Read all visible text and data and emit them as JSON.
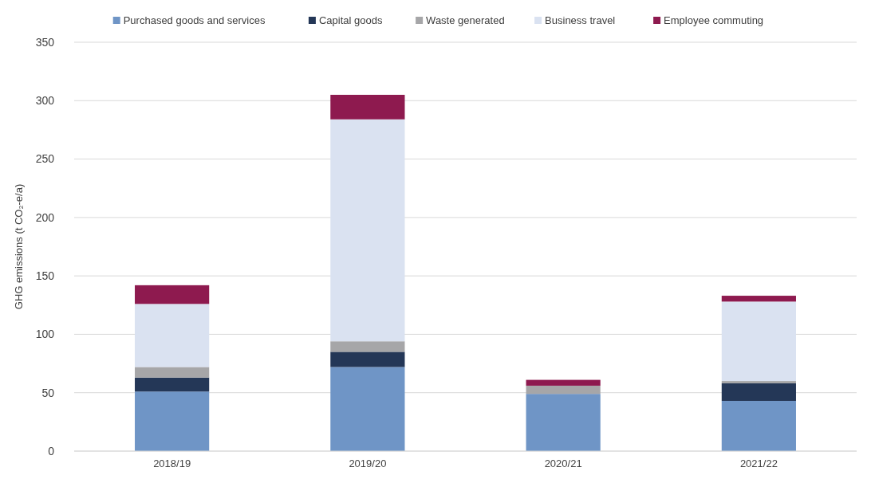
{
  "chart_data": {
    "type": "bar",
    "stacked": true,
    "ylabel": "GHG emissions (t CO₂-e/a)",
    "categories": [
      "2018/19",
      "2019/20",
      "2020/21",
      "2021/22"
    ],
    "series": [
      {
        "name": "Purchased goods and services",
        "color": "#6f95c6",
        "values": [
          51,
          72,
          49,
          43
        ]
      },
      {
        "name": "Capital goods",
        "color": "#243757",
        "values": [
          12,
          13,
          0,
          15
        ]
      },
      {
        "name": "Waste generated",
        "color": "#a6a6a8",
        "values": [
          9,
          9,
          7,
          2
        ]
      },
      {
        "name": "Business travel",
        "color": "#dae2f1",
        "values": [
          54,
          190,
          0,
          68
        ]
      },
      {
        "name": "Employee commuting",
        "color": "#8e1a4f",
        "values": [
          16,
          21,
          5,
          5
        ]
      }
    ],
    "ylim": [
      0,
      350
    ],
    "yticks": [
      0,
      50,
      100,
      150,
      200,
      250,
      300,
      350
    ],
    "grid": "y",
    "legend": "top"
  }
}
